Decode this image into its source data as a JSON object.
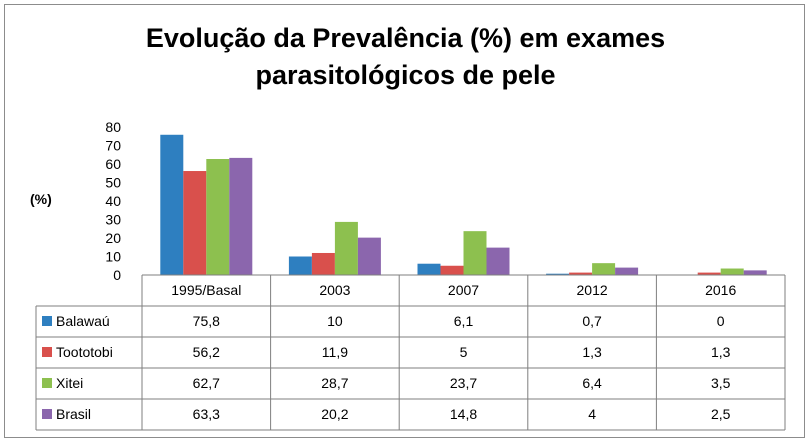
{
  "chart_data": {
    "type": "bar",
    "title_lines": [
      "Evolução da Prevalência (%) em exames",
      "parasitológicos de pele"
    ],
    "ylabel": "(%)",
    "ylim": [
      0,
      80
    ],
    "yticks": [
      0,
      10,
      20,
      30,
      40,
      50,
      60,
      70,
      80
    ],
    "categories": [
      "1995/Basal",
      "2003",
      "2007",
      "2012",
      "2016"
    ],
    "series": [
      {
        "name": "Balawaú",
        "color": "#2e7fc0",
        "values": [
          75.8,
          10,
          6.1,
          0.7,
          0
        ],
        "labels": [
          "75,8",
          "10",
          "6,1",
          "0,7",
          "0"
        ]
      },
      {
        "name": "Toototobi",
        "color": "#d9504c",
        "values": [
          56.2,
          11.9,
          5,
          1.3,
          1.3
        ],
        "labels": [
          "56,2",
          "11,9",
          "5",
          "1,3",
          "1,3"
        ]
      },
      {
        "name": "Xitei",
        "color": "#8dc04f",
        "values": [
          62.7,
          28.7,
          23.7,
          6.4,
          3.5
        ],
        "labels": [
          "62,7",
          "28,7",
          "23,7",
          "6,4",
          "3,5"
        ]
      },
      {
        "name": "Brasil",
        "color": "#8b66ad",
        "values": [
          63.3,
          20.2,
          14.8,
          4,
          2.5
        ],
        "labels": [
          "63,3",
          "20,2",
          "14,8",
          "4",
          "2,5"
        ]
      }
    ],
    "legend": "data-table",
    "grid": false
  }
}
